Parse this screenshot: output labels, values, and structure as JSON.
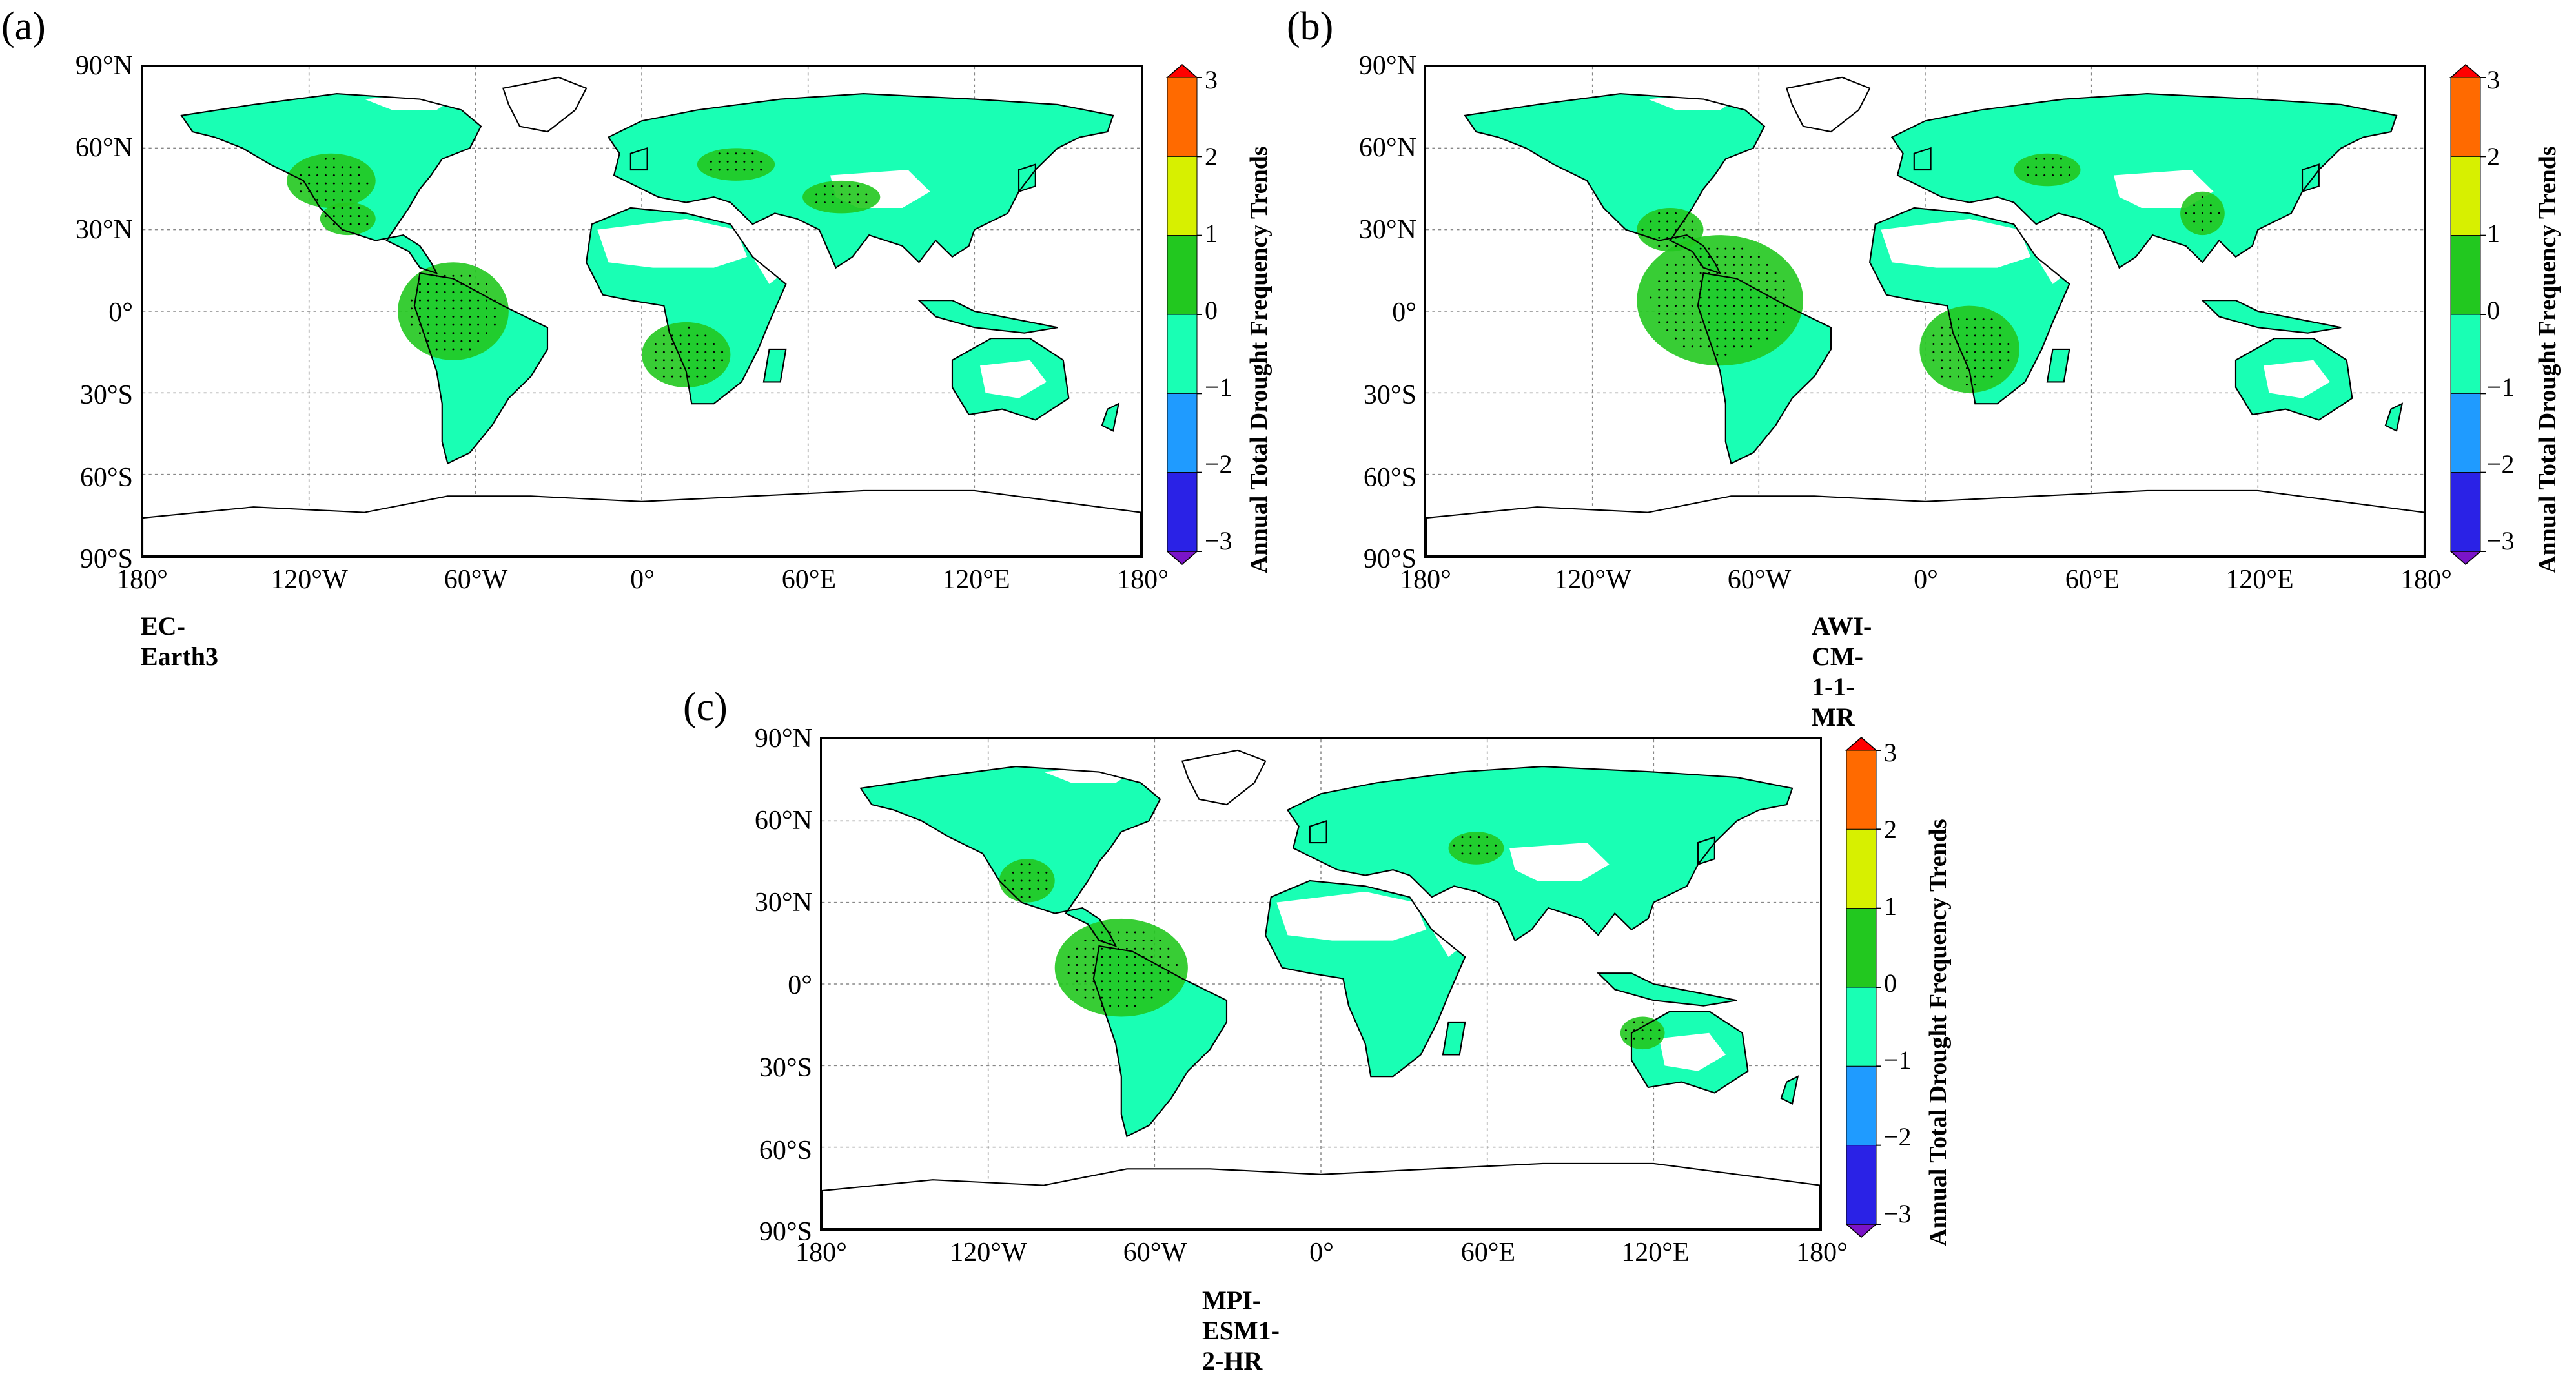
{
  "panels": [
    {
      "id": "a",
      "label": "(a)",
      "model": "EC-Earth3"
    },
    {
      "id": "b",
      "label": "(b)",
      "model": "AWI-CM-1-1-MR"
    },
    {
      "id": "c",
      "label": "(c)",
      "model": "MPI-ESM1-2-HR"
    }
  ],
  "axes": {
    "lat_ticks": [
      "90°N",
      "60°N",
      "30°N",
      "0°",
      "30°S",
      "60°S",
      "90°S"
    ],
    "lon_ticks": [
      "180°",
      "120°W",
      "60°W",
      "0°",
      "60°E",
      "120°E",
      "180°"
    ],
    "grid": "dotted",
    "projection": "PlateCarree"
  },
  "colorbar": {
    "title": "Annual Total Drought Frequency Trends",
    "ticks": [
      "3",
      "2",
      "1",
      "0",
      "−1",
      "−2",
      "−3"
    ],
    "bins": [
      {
        "range": "2 to 3",
        "color": "#ff6a00"
      },
      {
        "range": "1 to 2",
        "color": "#d7f000"
      },
      {
        "range": "0 to 1",
        "color": "#22c81f"
      },
      {
        "range": "−1 to 0",
        "color": "#19ffb4"
      },
      {
        "range": "−2 to −1",
        "color": "#1f9bff"
      },
      {
        "range": "−3 to −2",
        "color": "#2a22e6"
      }
    ],
    "over_color": "#ff0000",
    "under_color": "#7a14c8"
  },
  "colors": {
    "land_fill": "#19ffb4",
    "positive_fill": "#22c81f",
    "coastline": "#000000",
    "grid": "#888888"
  }
}
